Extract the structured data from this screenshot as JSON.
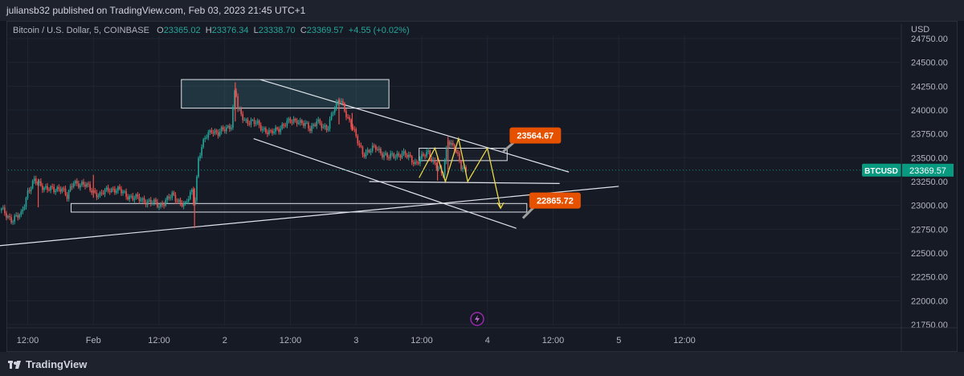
{
  "header": {
    "published_text": "juliansb32 published on TradingView.com, Feb 03, 2023 21:45 UTC+1"
  },
  "legend": {
    "symbol": "Bitcoin / U.S. Dollar, 5, COINBASE",
    "o_label": "O",
    "o_value": "23365.02",
    "h_label": "H",
    "h_value": "23376.34",
    "l_label": "L",
    "l_value": "23338.70",
    "c_label": "C",
    "c_value": "23369.57",
    "change": "+4.55 (+0.02%)"
  },
  "axis": {
    "currency": "USD"
  },
  "footer": {
    "brand": "TradingView",
    "brand_icon": "tradingview-logo-icon"
  },
  "colors": {
    "background": "#131722",
    "up": "#26a69a",
    "down": "#ef5350",
    "label_orange": "#e65100",
    "price_label": "#089981",
    "projection": "#e8d84a"
  },
  "chart_data": {
    "type": "candlestick",
    "symbol": "BTCUSD",
    "last_price": 23369.57,
    "ylim": [
      21650,
      24850
    ],
    "y_ticks": [
      24750,
      24500,
      24250,
      24000,
      23750,
      23500,
      23250,
      23000,
      22750,
      22500,
      22250,
      22000,
      21750
    ],
    "x_ticks": [
      {
        "label": "12:00",
        "day": 0.5
      },
      {
        "label": "Feb",
        "day": 1.0
      },
      {
        "label": "12:00",
        "day": 1.5
      },
      {
        "label": "2",
        "day": 2.0
      },
      {
        "label": "12:00",
        "day": 2.5
      },
      {
        "label": "3",
        "day": 3.0
      },
      {
        "label": "12:00",
        "day": 3.5
      },
      {
        "label": "4",
        "day": 4.0
      },
      {
        "label": "12:00",
        "day": 4.5
      },
      {
        "label": "5",
        "day": 5.0
      },
      {
        "label": "12:00",
        "day": 5.5
      }
    ],
    "price_path": [
      [
        0.3,
        22950
      ],
      [
        0.38,
        22850
      ],
      [
        0.45,
        22900
      ],
      [
        0.5,
        23150
      ],
      [
        0.55,
        23250
      ],
      [
        0.62,
        23200
      ],
      [
        0.7,
        23150
      ],
      [
        0.76,
        23200
      ],
      [
        0.8,
        23080
      ],
      [
        0.85,
        23250
      ],
      [
        0.95,
        23200
      ],
      [
        1.05,
        23100
      ],
      [
        1.12,
        23180
      ],
      [
        1.2,
        23150
      ],
      [
        1.3,
        23080
      ],
      [
        1.4,
        23050
      ],
      [
        1.5,
        23000
      ],
      [
        1.6,
        23100
      ],
      [
        1.7,
        23000
      ],
      [
        1.75,
        23150
      ],
      [
        1.77,
        23000
      ],
      [
        1.8,
        23500
      ],
      [
        1.85,
        23700
      ],
      [
        1.9,
        23800
      ],
      [
        1.95,
        23750
      ],
      [
        2.05,
        23850
      ],
      [
        2.08,
        24250
      ],
      [
        2.1,
        24000
      ],
      [
        2.15,
        23900
      ],
      [
        2.25,
        23850
      ],
      [
        2.35,
        23750
      ],
      [
        2.45,
        23850
      ],
      [
        2.55,
        23900
      ],
      [
        2.65,
        23800
      ],
      [
        2.7,
        23900
      ],
      [
        2.75,
        23800
      ],
      [
        2.78,
        23800
      ],
      [
        2.82,
        24000
      ],
      [
        2.88,
        24100
      ],
      [
        2.93,
        23950
      ],
      [
        2.98,
        23800
      ],
      [
        3.0,
        23700
      ],
      [
        3.05,
        23550
      ],
      [
        3.15,
        23600
      ],
      [
        3.25,
        23500
      ],
      [
        3.35,
        23550
      ],
      [
        3.45,
        23450
      ],
      [
        3.55,
        23550
      ],
      [
        3.62,
        23400
      ],
      [
        3.66,
        23300
      ],
      [
        3.7,
        23700
      ],
      [
        3.75,
        23600
      ],
      [
        3.8,
        23400
      ],
      [
        3.84,
        23380
      ]
    ],
    "wicks": [
      {
        "day": 1.77,
        "low": 22760,
        "high": 23180
      },
      {
        "day": 1.0,
        "low": 23080,
        "high": 23320
      },
      {
        "day": 0.58,
        "low": 22980,
        "high": 23280
      },
      {
        "day": 2.08,
        "low": 23880,
        "high": 24290
      },
      {
        "day": 2.87,
        "low": 23850,
        "high": 24130
      },
      {
        "day": 2.97,
        "low": 23780,
        "high": 23970
      },
      {
        "day": 3.62,
        "low": 23260,
        "high": 23520
      },
      {
        "day": 3.7,
        "low": 23330,
        "high": 23720
      }
    ],
    "drawings": {
      "rectangles": [
        {
          "x0": 1.67,
          "x1": 3.25,
          "y0": 24020,
          "y1": 24320
        },
        {
          "x0": 3.48,
          "x1": 4.15,
          "y0": 23470,
          "y1": 23600
        },
        {
          "x0": 0.83,
          "x1": 4.3,
          "y0": 22930,
          "y1": 23020
        }
      ],
      "lines": [
        {
          "x0": 2.27,
          "y0": 24320,
          "x1": 4.62,
          "y1": 23350
        },
        {
          "x0": 2.22,
          "y0": 23700,
          "x1": 4.22,
          "y1": 22760
        },
        {
          "x0": 0.0,
          "y0": 22540,
          "x1": 5.0,
          "y1": 23200
        },
        {
          "x0": 3.1,
          "y0": 23250,
          "x1": 4.55,
          "y1": 23230
        }
      ],
      "projection": [
        [
          3.48,
          23290
        ],
        [
          3.6,
          23600
        ],
        [
          3.68,
          23250
        ],
        [
          3.78,
          23700
        ],
        [
          3.85,
          23250
        ],
        [
          4.0,
          23600
        ],
        [
          4.1,
          22970
        ]
      ],
      "callouts": [
        {
          "text": "23564.67",
          "price": 23564.67,
          "x": 4.12
        },
        {
          "text": "22865.72",
          "price": 22865.72,
          "x": 4.27
        }
      ]
    }
  }
}
